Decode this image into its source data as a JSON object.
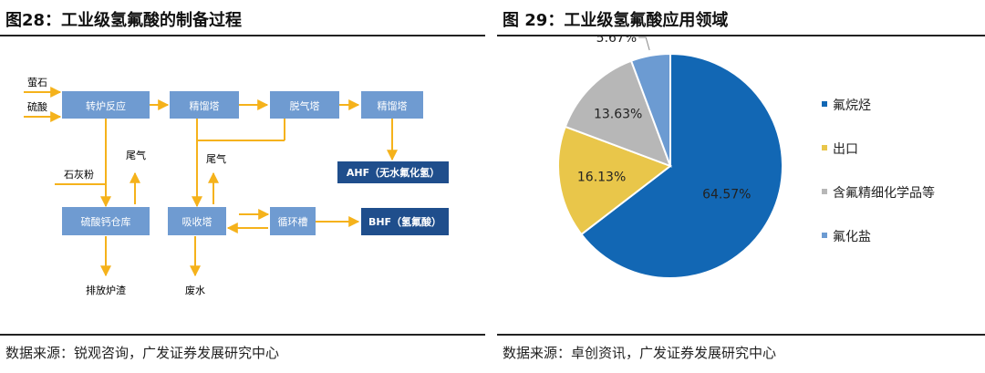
{
  "left": {
    "title": "图28：工业级氢氟酸的制备过程",
    "source": "数据来源：锐观咨询，广发证券发展研究中心",
    "flow": {
      "inputs": {
        "fluorite": "萤石",
        "sulfuric_acid": "硫酸",
        "limestone": "石灰粉"
      },
      "boxes": {
        "rotary_kiln": "转炉反应",
        "rectifier_1": "精馏塔",
        "degasser": "脱气塔",
        "rectifier_2": "精馏塔",
        "calcium_sulfate_bin": "硫酸钙仓库",
        "absorber": "吸收塔",
        "circulation_tank": "循环槽"
      },
      "products": {
        "ahf": "AHF（无水氟化氢）",
        "bhf": "BHF（氢氟酸）"
      },
      "outputs": {
        "tail_gas_1": "尾气",
        "tail_gas_2": "尾气",
        "slag": "排放炉渣",
        "waste_water": "废水"
      },
      "colors": {
        "box": "#6f9bd1",
        "product": "#1f4e8c",
        "arrow": "#f5b21b"
      }
    }
  },
  "right": {
    "title": "图 29：工业级氢氟酸应用领域",
    "source": "数据来源：卓创资讯，广发证券发展研究中心"
  },
  "chart_data": {
    "type": "pie",
    "categories": [
      "氟烷烃",
      "出口",
      "含氟精细化学品等",
      "氟化盐"
    ],
    "values": [
      64.57,
      16.13,
      13.63,
      5.67
    ],
    "labels": [
      "64.57%",
      "16.13%",
      "13.63%",
      "5.67%"
    ],
    "colors": [
      "#1267b4",
      "#e9c64a",
      "#b7b7b7",
      "#6c9bd2"
    ],
    "legend_position": "right",
    "start": "12 o'clock, clockwise"
  }
}
